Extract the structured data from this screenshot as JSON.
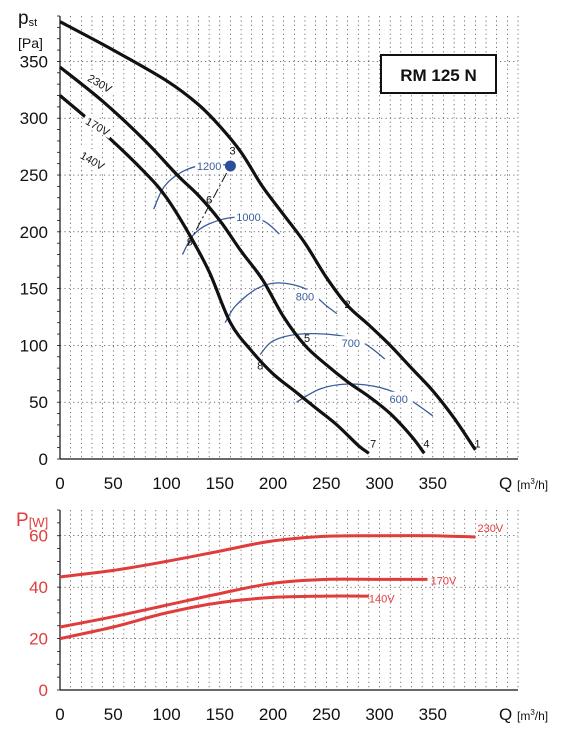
{
  "chart_data": [
    {
      "type": "line",
      "model_label": "RM 125 N",
      "ylabel_main": "p",
      "ylabel_sub": "st",
      "ylabel_unit": "[Pa]",
      "xlabel": "Q",
      "xunit_pre": "[m",
      "xunit_sup": "3",
      "xunit_post": "/h]",
      "xlim": [
        0,
        430
      ],
      "ylim": [
        0,
        390
      ],
      "x_ticks": [
        0,
        50,
        100,
        150,
        200,
        250,
        300,
        350
      ],
      "y_ticks": [
        0,
        50,
        100,
        150,
        200,
        250,
        300,
        350
      ],
      "x_tick_labels": [
        "0",
        "50",
        "100",
        "150",
        "200",
        "250",
        "300",
        "350"
      ],
      "y_tick_labels": [
        "0",
        "50",
        "100",
        "150",
        "200",
        "250",
        "300",
        "350"
      ],
      "grid": true,
      "series": [
        {
          "name": "230V",
          "color": "#111111",
          "points": [
            [
              0,
              385
            ],
            [
              50,
              360
            ],
            [
              100,
              333
            ],
            [
              130,
              312
            ],
            [
              150,
              293
            ],
            [
              170,
              270
            ],
            [
              190,
              240
            ],
            [
              210,
              215
            ],
            [
              230,
              190
            ],
            [
              250,
              160
            ],
            [
              270,
              135
            ],
            [
              290,
              118
            ],
            [
              310,
              100
            ],
            [
              330,
              80
            ],
            [
              350,
              60
            ],
            [
              370,
              36
            ],
            [
              390,
              8
            ]
          ]
        },
        {
          "name": "170V",
          "color": "#111111",
          "points": [
            [
              0,
              345
            ],
            [
              40,
              315
            ],
            [
              80,
              280
            ],
            [
              110,
              250
            ],
            [
              130,
              232
            ],
            [
              150,
              210
            ],
            [
              170,
              183
            ],
            [
              190,
              158
            ],
            [
              210,
              125
            ],
            [
              230,
              100
            ],
            [
              250,
              83
            ],
            [
              270,
              68
            ],
            [
              290,
              55
            ],
            [
              310,
              40
            ],
            [
              330,
              20
            ],
            [
              342,
              5
            ]
          ]
        },
        {
          "name": "140V",
          "color": "#111111",
          "points": [
            [
              0,
              320
            ],
            [
              40,
              288
            ],
            [
              80,
              252
            ],
            [
              100,
              230
            ],
            [
              120,
              200
            ],
            [
              140,
              165
            ],
            [
              160,
              120
            ],
            [
              180,
              95
            ],
            [
              200,
              75
            ],
            [
              220,
              60
            ],
            [
              240,
              45
            ],
            [
              260,
              30
            ],
            [
              280,
              12
            ],
            [
              290,
              5
            ]
          ]
        }
      ],
      "series_labels": [
        {
          "text": "230V",
          "x": 37,
          "y": 330
        },
        {
          "text": "170V",
          "x": 35,
          "y": 292
        },
        {
          "text": "140V",
          "x": 30,
          "y": 262
        }
      ],
      "rpm_lines": [
        {
          "label": "1200",
          "label_x": 140,
          "label_y": 258,
          "points": [
            [
              88,
              220
            ],
            [
              98,
              240
            ],
            [
              115,
              253
            ],
            [
              135,
              259
            ],
            [
              155,
              259
            ]
          ]
        },
        {
          "label": "1000",
          "label_x": 177,
          "label_y": 213,
          "points": [
            [
              115,
              180
            ],
            [
              125,
              197
            ],
            [
              140,
              207
            ],
            [
              165,
              213
            ],
            [
              190,
              210
            ],
            [
              206,
              198
            ]
          ]
        },
        {
          "label": "800",
          "label_x": 230,
          "label_y": 143,
          "points": [
            [
              155,
              120
            ],
            [
              165,
              135
            ],
            [
              185,
              150
            ],
            [
              205,
              155
            ],
            [
              230,
              150
            ],
            [
              250,
              135
            ],
            [
              260,
              128
            ]
          ]
        },
        {
          "label": "700",
          "label_x": 273,
          "label_y": 102,
          "points": [
            [
              188,
              92
            ],
            [
              200,
              104
            ],
            [
              225,
              110
            ],
            [
              260,
              109
            ],
            [
              285,
              102
            ],
            [
              305,
              88
            ]
          ]
        },
        {
          "label": "600",
          "label_x": 318,
          "label_y": 53,
          "points": [
            [
              222,
              50
            ],
            [
              245,
              62
            ],
            [
              272,
              66
            ],
            [
              300,
              63
            ],
            [
              325,
              54
            ],
            [
              350,
              38
            ]
          ]
        }
      ],
      "points": [
        {
          "label": "1",
          "x": 392,
          "y": 10
        },
        {
          "label": "2",
          "x": 270,
          "y": 133
        },
        {
          "label": "3",
          "x": 162,
          "y": 268
        },
        {
          "label": "4",
          "x": 344,
          "y": 10
        },
        {
          "label": "5",
          "x": 232,
          "y": 103
        },
        {
          "label": "6",
          "x": 140,
          "y": 225
        },
        {
          "label": "7",
          "x": 294,
          "y": 10
        },
        {
          "label": "8",
          "x": 188,
          "y": 79
        },
        {
          "label": "9",
          "x": 122,
          "y": 188
        }
      ],
      "operating_point": {
        "x": 160,
        "y": 258
      },
      "dash_line": [
        [
          120,
          188
        ],
        [
          160,
          258
        ]
      ]
    },
    {
      "type": "line",
      "ylabel_main": "P",
      "ylabel_unit": "[W]",
      "xlabel": "Q",
      "xunit_pre": "[m",
      "xunit_sup": "3",
      "xunit_post": "/h]",
      "xlim": [
        0,
        430
      ],
      "ylim": [
        0,
        70
      ],
      "x_ticks": [
        0,
        50,
        100,
        150,
        200,
        250,
        300,
        350
      ],
      "y_ticks": [
        0,
        20,
        40,
        60
      ],
      "x_tick_labels": [
        "0",
        "50",
        "100",
        "150",
        "200",
        "250",
        "300",
        "350"
      ],
      "y_tick_labels": [
        "0",
        "20",
        "40",
        "60"
      ],
      "grid": true,
      "series": [
        {
          "name": "230V",
          "color": "#e03c3c",
          "points": [
            [
              0,
              44
            ],
            [
              50,
              46.5
            ],
            [
              100,
              50
            ],
            [
              150,
              54
            ],
            [
              200,
              58
            ],
            [
              250,
              59.8
            ],
            [
              300,
              60
            ],
            [
              350,
              60
            ],
            [
              390,
              59.5
            ]
          ],
          "label_x": 392,
          "label_y": 61.5
        },
        {
          "name": "170V",
          "color": "#e03c3c",
          "points": [
            [
              0,
              24.5
            ],
            [
              50,
              28.5
            ],
            [
              100,
              33
            ],
            [
              150,
              37.5
            ],
            [
              200,
              41.5
            ],
            [
              250,
              43
            ],
            [
              300,
              43
            ],
            [
              345,
              43
            ]
          ],
          "label_x": 348,
          "label_y": 41
        },
        {
          "name": "140V",
          "color": "#e03c3c",
          "points": [
            [
              0,
              20
            ],
            [
              50,
              24.5
            ],
            [
              100,
              30
            ],
            [
              150,
              34
            ],
            [
              200,
              36
            ],
            [
              250,
              36.5
            ],
            [
              290,
              36.5
            ]
          ],
          "label_x": 290,
          "label_y": 34
        }
      ]
    }
  ]
}
